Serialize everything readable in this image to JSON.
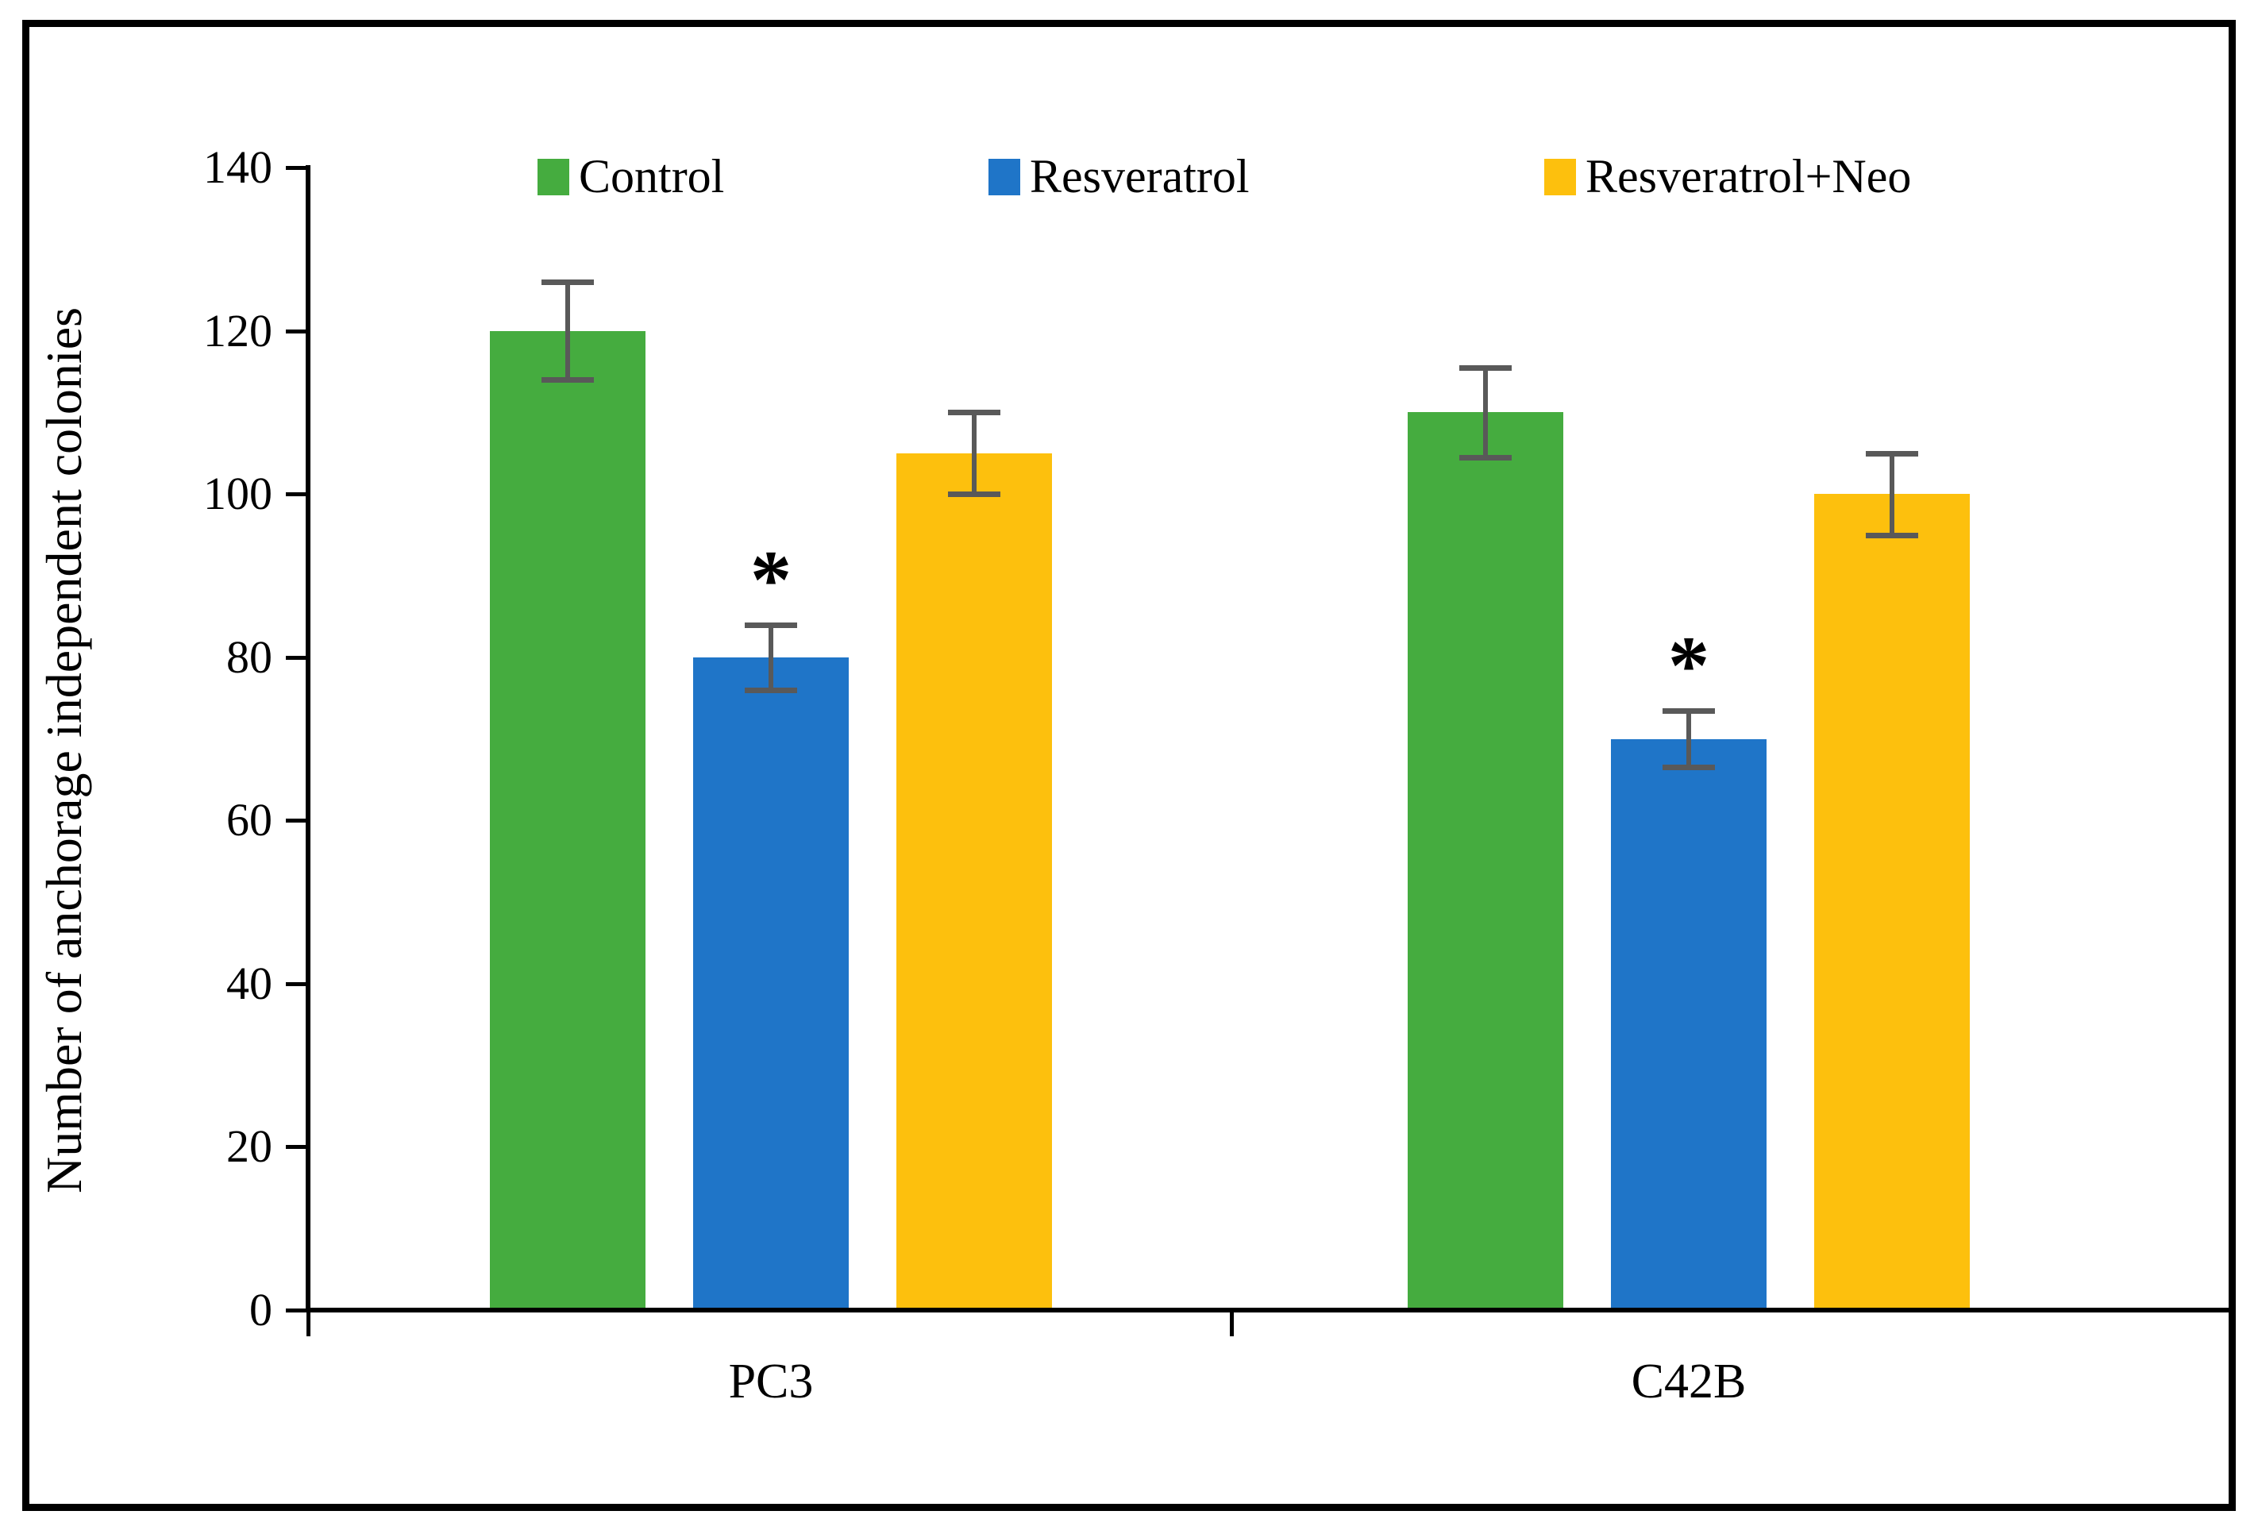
{
  "figure": {
    "border_color": "#000000",
    "background_color": "#ffffff"
  },
  "chart_data": {
    "type": "bar",
    "title": "",
    "ylabel": "Number of anchorage independent colonies",
    "xlabel": "",
    "ylim": [
      0,
      140
    ],
    "yticks": [
      0,
      20,
      40,
      60,
      80,
      100,
      120,
      140
    ],
    "categories": [
      "PC3",
      "C42B"
    ],
    "series": [
      {
        "name": "Control",
        "color": "#45AC3F",
        "values": [
          120,
          110
        ],
        "errors": [
          6,
          5.5
        ],
        "significance": [
          "",
          ""
        ]
      },
      {
        "name": "Resveratrol",
        "color": "#1F75C8",
        "values": [
          80,
          70
        ],
        "errors": [
          4,
          3.5
        ],
        "significance": [
          "*",
          "*"
        ]
      },
      {
        "name": "Resveratrol+Neo",
        "color": "#FDC00D",
        "values": [
          105,
          100
        ],
        "errors": [
          5,
          5
        ],
        "significance": [
          "",
          ""
        ]
      }
    ],
    "legend_position": "top",
    "grid": false,
    "error_bar_color": "#595959",
    "significance_marker": "*"
  }
}
